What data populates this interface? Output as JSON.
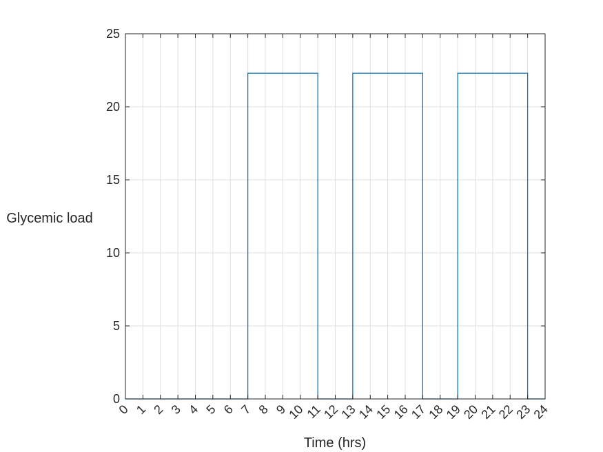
{
  "chart_data": {
    "type": "line",
    "title": "",
    "xlabel": "Time (hrs)",
    "ylabel": "Glycemic load",
    "xlim": [
      0,
      24
    ],
    "ylim": [
      0,
      25
    ],
    "xticks": [
      0,
      1,
      2,
      3,
      4,
      5,
      6,
      7,
      8,
      9,
      10,
      11,
      12,
      13,
      14,
      15,
      16,
      17,
      18,
      19,
      20,
      21,
      22,
      23,
      24
    ],
    "yticks": [
      0,
      5,
      10,
      15,
      20,
      25
    ],
    "grid": true,
    "line_color": "#0072BD",
    "series": [
      {
        "x": [
          0,
          7,
          7,
          11,
          11,
          13,
          13,
          17,
          17,
          19,
          19,
          23,
          23,
          24
        ],
        "values": [
          0,
          0,
          22.3,
          22.3,
          0,
          0,
          22.3,
          22.3,
          0,
          0,
          22.3,
          22.3,
          0,
          0
        ]
      }
    ]
  }
}
